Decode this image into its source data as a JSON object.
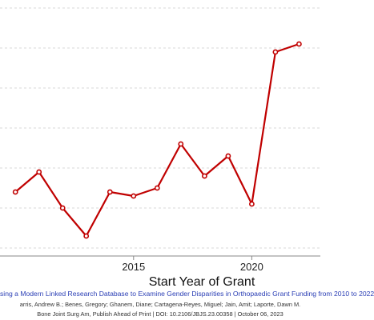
{
  "chart_data": {
    "type": "line",
    "xlabel": "Start Year of Grant",
    "x": [
      2010,
      2011,
      2012,
      2013,
      2014,
      2015,
      2016,
      2017,
      2018,
      2019,
      2020,
      2021,
      2022
    ],
    "series": [
      {
        "values": [
          3.4,
          3.9,
          3.0,
          2.3,
          3.4,
          3.3,
          3.5,
          4.6,
          3.8,
          4.3,
          3.1,
          6.9,
          7.1
        ]
      }
    ],
    "xticks": [
      "2015",
      "2020"
    ],
    "xlim": [
      2009.35,
      2022.9
    ],
    "ylim": [
      1.8,
      8.2
    ],
    "grid": "horizontal-dashed",
    "line_color": "#c00000"
  },
  "caption": {
    "title": "sing a Modern Linked Research Database to Examine Gender Disparities in Orthopaedic Grant Funding from 2010 to 2022",
    "authors": "arris, Andrew B.; Benes, Gregory; Ghanem, Diane; Cartagena-Reyes, Miguel; Jain, Amit; Laporte, Dawn M.",
    "journal": "Bone Joint Surg Am, Publish Ahead of Print | DOI: 10.2106/JBJS.23.00358 | October 06, 2023"
  }
}
